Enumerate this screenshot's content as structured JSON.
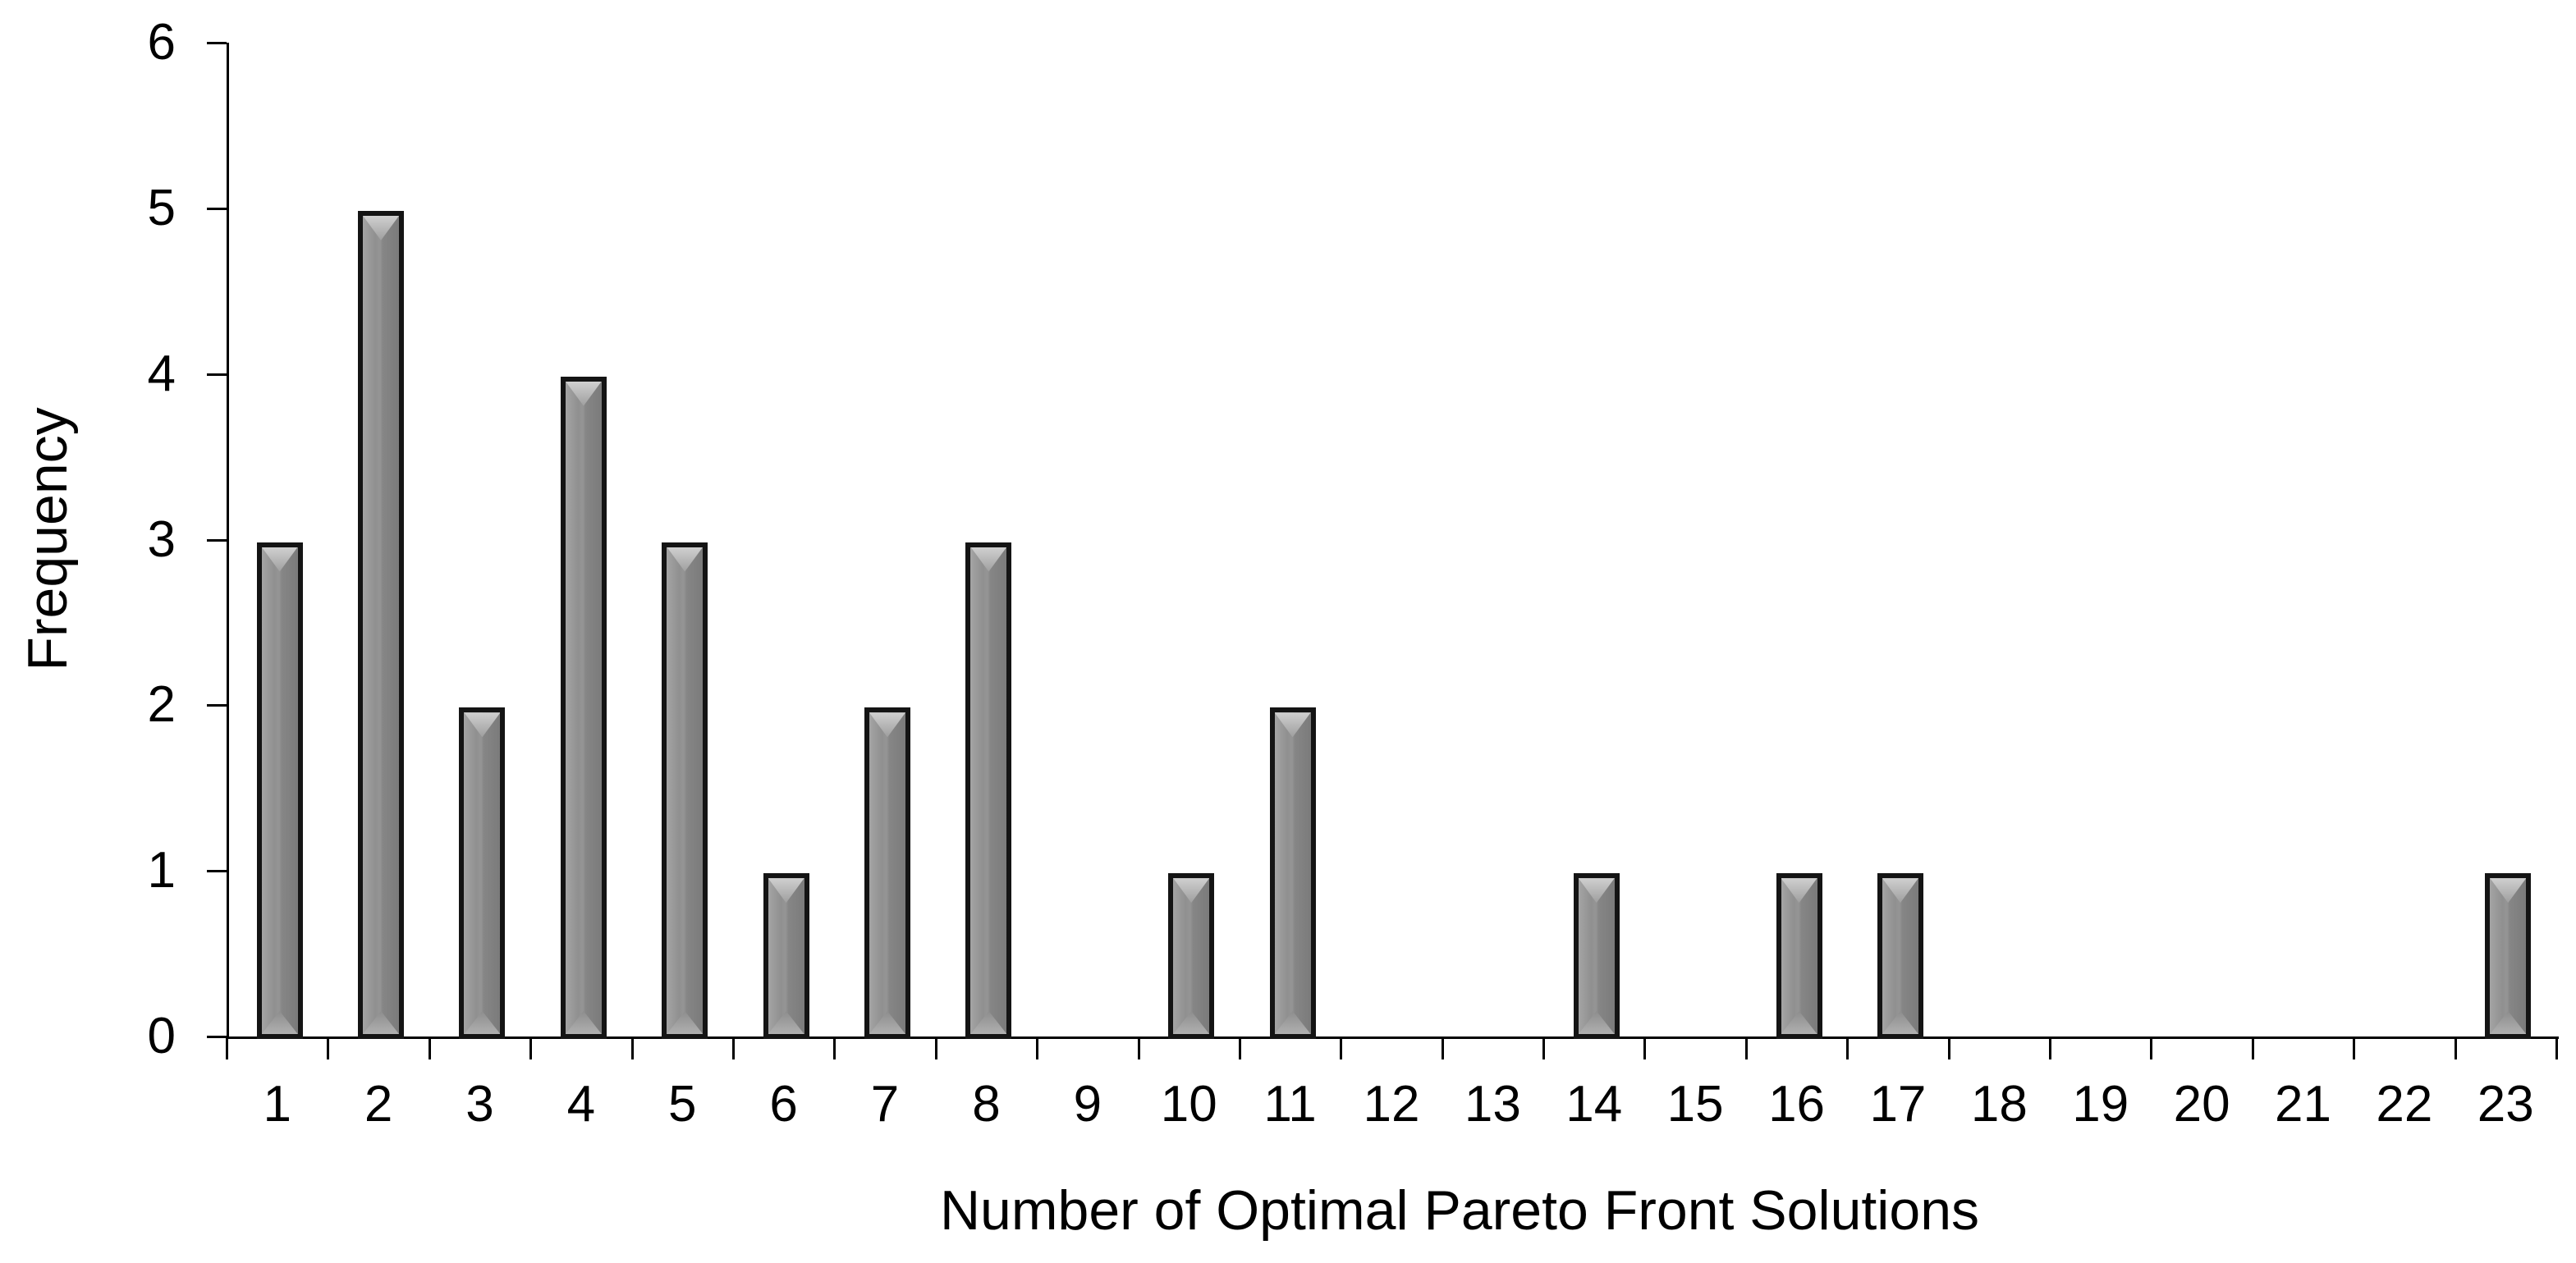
{
  "chart_data": {
    "type": "bar",
    "title": "",
    "xlabel": "Number of Optimal Pareto Front Solutions",
    "ylabel": "Frequency",
    "categories": [
      "1",
      "2",
      "3",
      "4",
      "5",
      "6",
      "7",
      "8",
      "9",
      "10",
      "11",
      "12",
      "13",
      "14",
      "15",
      "16",
      "17",
      "18",
      "19",
      "20",
      "21",
      "22",
      "23"
    ],
    "values": [
      3,
      5,
      2,
      4,
      3,
      1,
      2,
      3,
      0,
      1,
      2,
      0,
      0,
      1,
      0,
      1,
      1,
      0,
      0,
      0,
      0,
      0,
      1
    ],
    "ylim": [
      0,
      6
    ],
    "yticks": [
      0,
      1,
      2,
      3,
      4,
      5,
      6
    ],
    "grid": false,
    "legend": false,
    "bar_style": {
      "fill_light": "#a4a4a4",
      "fill_dark": "#7b7b7b",
      "bevel_highlight": "#d0d0d0",
      "border": "#141414"
    },
    "axis_color": "#000000",
    "background": "#ffffff"
  }
}
